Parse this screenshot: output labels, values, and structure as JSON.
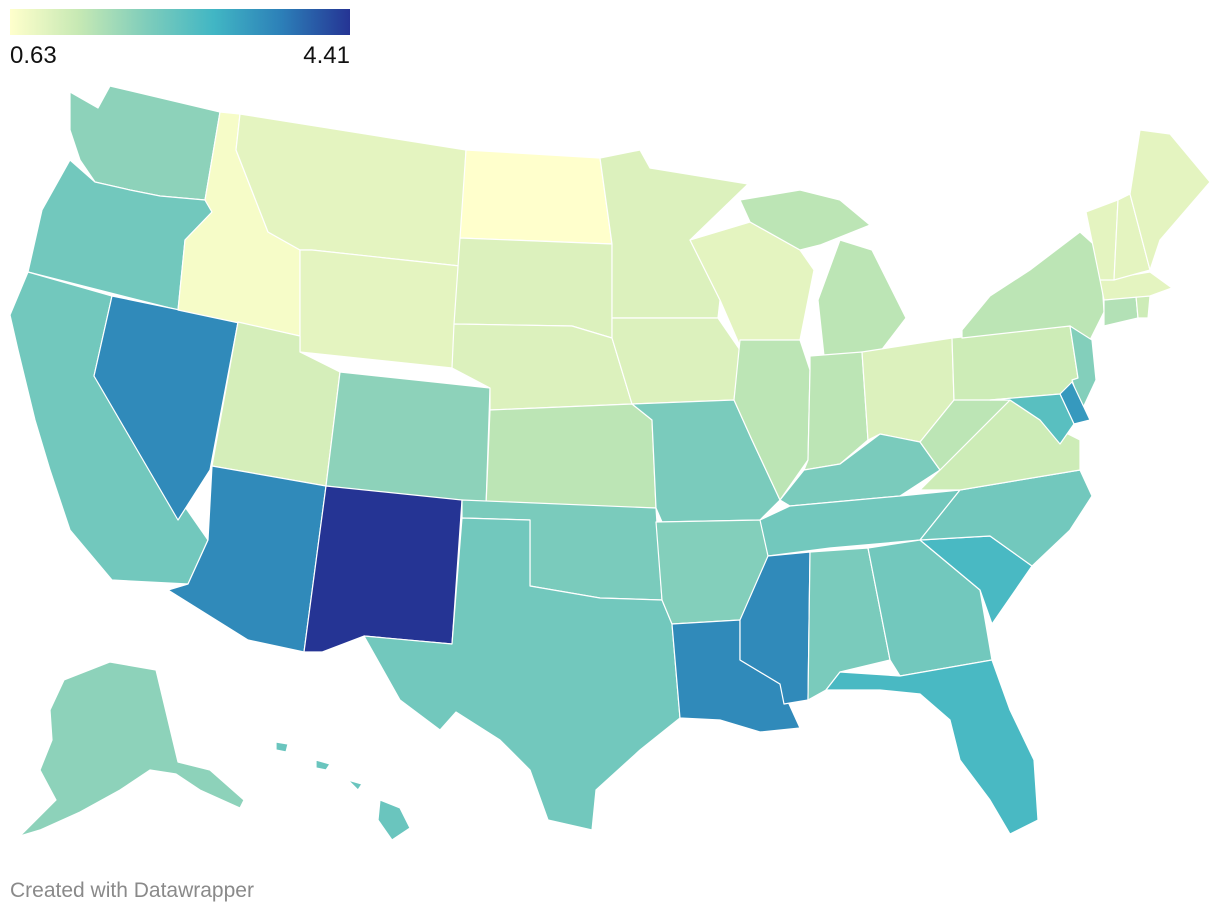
{
  "legend": {
    "min_label": "0.63",
    "max_label": "4.41",
    "min": 0.63,
    "max": 4.41,
    "colors": [
      "#ffffcc",
      "#c7e9b4",
      "#7fcdbb",
      "#41b6c4",
      "#2c7fb8",
      "#253494"
    ]
  },
  "footer": {
    "text": "Created with Datawrapper"
  },
  "map_data": {
    "type": "choropleth",
    "region": "United States",
    "states": {
      "WA": 2.0,
      "OR": 2.3,
      "CA": 2.3,
      "NV": 3.5,
      "ID": 0.75,
      "MT": 1.0,
      "WY": 1.0,
      "UT": 1.2,
      "AZ": 3.5,
      "CO": 2.0,
      "NM": 4.41,
      "ND": 0.63,
      "SD": 1.1,
      "NE": 1.1,
      "KS": 1.5,
      "OK": 2.2,
      "TX": 2.3,
      "MN": 1.1,
      "IA": 1.1,
      "MO": 2.2,
      "AR": 2.1,
      "LA": 3.5,
      "WI": 1.0,
      "IL": 1.5,
      "MI": 1.5,
      "IN": 1.5,
      "OH": 1.1,
      "KY": 2.2,
      "TN": 2.3,
      "MS": 3.5,
      "AL": 2.2,
      "GA": 2.3,
      "FL": 2.8,
      "SC": 2.8,
      "NC": 2.3,
      "VA": 1.3,
      "WV": 1.5,
      "PA": 1.3,
      "NY": 1.5,
      "ME": 1.0,
      "VT": 1.0,
      "NH": 1.0,
      "MA": 1.0,
      "CT": 1.6,
      "RI": 1.3,
      "NJ": 2.1,
      "DE": 3.3,
      "MD": 2.6,
      "AK": 2.0,
      "HI": 2.4
    }
  }
}
